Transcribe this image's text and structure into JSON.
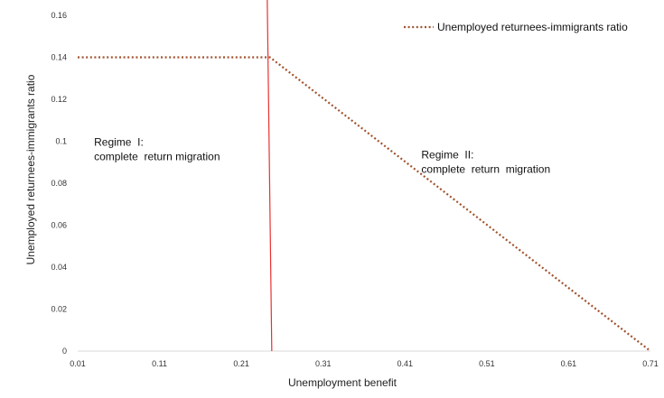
{
  "chart_data": {
    "type": "line",
    "title": "",
    "xlabel": "Unemployment benefit",
    "ylabel": "Unemployed returnees-immigrants ratio",
    "xlim": [
      0.01,
      0.71
    ],
    "ylim": [
      0,
      0.16
    ],
    "x_ticks": [
      0.01,
      0.11,
      0.21,
      0.31,
      0.41,
      0.51,
      0.61,
      0.71
    ],
    "x_tick_labels": [
      "0.01",
      "0.11",
      "0.21",
      "0.31",
      "0.41",
      "0.51",
      "0.61",
      "0.71"
    ],
    "y_ticks": [
      0,
      0.02,
      0.04,
      0.06,
      0.08,
      0.1,
      0.12,
      0.14,
      0.16
    ],
    "y_tick_labels": [
      "0",
      "0.02",
      "0.04",
      "0.06",
      "0.08",
      "0.1",
      "0.12",
      "0.14",
      "0.16"
    ],
    "grid": false,
    "legend_position": "top-right",
    "series": [
      {
        "name": "Unemployed returnees-immigrants ratio",
        "color": "#a0522d",
        "style": "dotted",
        "x": [
          0.01,
          0.245,
          0.71
        ],
        "y": [
          0.14,
          0.14,
          0.0
        ]
      }
    ],
    "vertical_line": {
      "x": 0.245,
      "color": "#e8312f"
    },
    "annotations": [
      {
        "lines": [
          "Regime  I:",
          "complete  return migration"
        ],
        "x": 0.03,
        "y": 0.1
      },
      {
        "lines": [
          "Regime  II:",
          "complete  return  migration"
        ],
        "x": 0.43,
        "y": 0.094
      }
    ]
  }
}
